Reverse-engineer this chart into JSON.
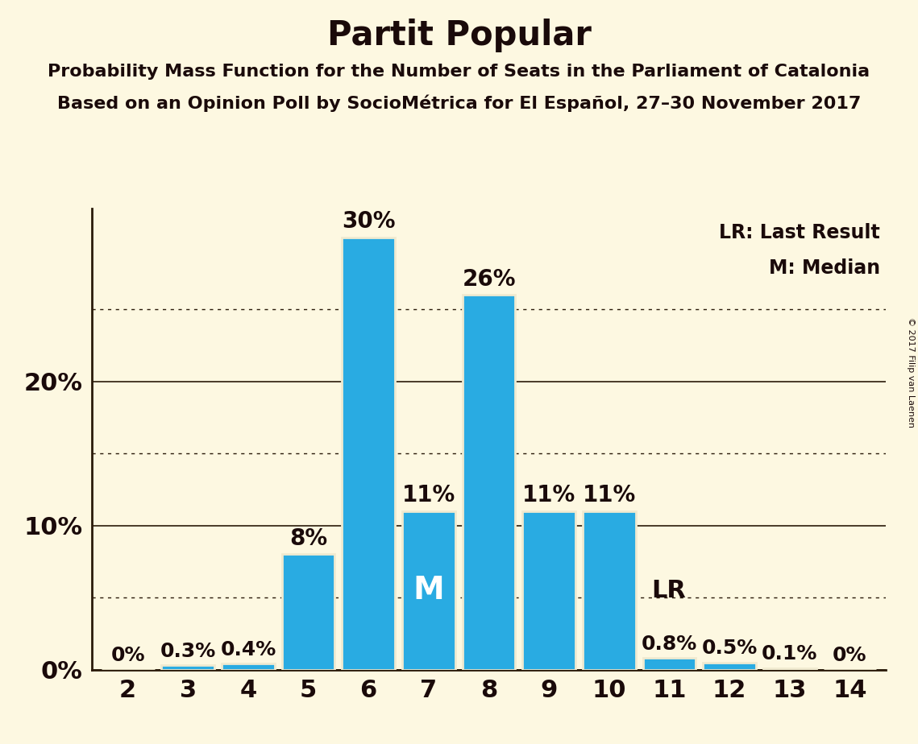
{
  "title": "Partit Popular",
  "subtitle1": "Probability Mass Function for the Number of Seats in the Parliament of Catalonia",
  "subtitle2": "Based on an Opinion Poll by SocioMétrica for El Español, 27–30 November 2017",
  "copyright": "© 2017 Filip van Laenen",
  "seats": [
    2,
    3,
    4,
    5,
    6,
    7,
    8,
    9,
    10,
    11,
    12,
    13,
    14
  ],
  "values": [
    0.0,
    0.3,
    0.4,
    8.0,
    30.0,
    11.0,
    26.0,
    11.0,
    11.0,
    0.8,
    0.5,
    0.1,
    0.0
  ],
  "bar_color": "#29abe2",
  "bar_edge_color": "#f0ead0",
  "background_color": "#fdf8e1",
  "axis_color": "#2a1a0a",
  "text_color": "#1a0a0a",
  "median_seat": 7,
  "lr_seat": 11,
  "legend_lr": "LR: Last Result",
  "legend_m": "M: Median",
  "ylabel_solid": [
    0,
    10,
    20
  ],
  "ylabel_dotted": [
    5,
    15,
    25
  ],
  "ylim": [
    0,
    32
  ],
  "title_fontsize": 30,
  "subtitle_fontsize": 16,
  "ylabel_fontsize": 22,
  "tick_fontsize": 22,
  "annotation_fontsize_small": 18,
  "annotation_fontsize_large": 20,
  "legend_fontsize": 17,
  "marker_M_fontsize": 28,
  "marker_LR_fontsize": 22
}
